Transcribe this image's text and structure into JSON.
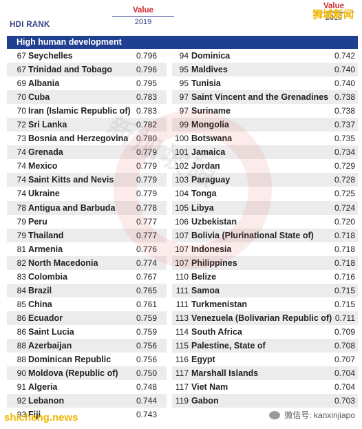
{
  "header": {
    "hdi_rank_label": "HDI RANK",
    "value_label": "Value",
    "year_label": "2019",
    "value_label_right": "Value",
    "year_label_right": "2019"
  },
  "section": {
    "title": "High human development"
  },
  "watermarks": {
    "top_right": "狮城新闻",
    "center": "新加坡眼",
    "bottom_left": "shicheng.news",
    "bottom_right": "微信号: kanxinjiapo"
  },
  "left_rows": [
    {
      "rank": "67",
      "country": "Seychelles",
      "value": "0.796"
    },
    {
      "rank": "67",
      "country": "Trinidad and Tobago",
      "value": "0.796"
    },
    {
      "rank": "69",
      "country": "Albania",
      "value": "0.795"
    },
    {
      "rank": "70",
      "country": "Cuba",
      "value": "0.783"
    },
    {
      "rank": "70",
      "country": "Iran (Islamic Republic of)",
      "value": "0.783"
    },
    {
      "rank": "72",
      "country": "Sri Lanka",
      "value": "0.782"
    },
    {
      "rank": "73",
      "country": "Bosnia and Herzegovina",
      "value": "0.780"
    },
    {
      "rank": "74",
      "country": "Grenada",
      "value": "0.779"
    },
    {
      "rank": "74",
      "country": "Mexico",
      "value": "0.779"
    },
    {
      "rank": "74",
      "country": "Saint Kitts and Nevis",
      "value": "0.779"
    },
    {
      "rank": "74",
      "country": "Ukraine",
      "value": "0.779"
    },
    {
      "rank": "78",
      "country": "Antigua and Barbuda",
      "value": "0.778"
    },
    {
      "rank": "79",
      "country": "Peru",
      "value": "0.777"
    },
    {
      "rank": "79",
      "country": "Thailand",
      "value": "0.777"
    },
    {
      "rank": "81",
      "country": "Armenia",
      "value": "0.776"
    },
    {
      "rank": "82",
      "country": "North Macedonia",
      "value": "0.774"
    },
    {
      "rank": "83",
      "country": "Colombia",
      "value": "0.767"
    },
    {
      "rank": "84",
      "country": "Brazil",
      "value": "0.765"
    },
    {
      "rank": "85",
      "country": "China",
      "value": "0.761"
    },
    {
      "rank": "86",
      "country": "Ecuador",
      "value": "0.759"
    },
    {
      "rank": "86",
      "country": "Saint Lucia",
      "value": "0.759"
    },
    {
      "rank": "88",
      "country": "Azerbaijan",
      "value": "0.756"
    },
    {
      "rank": "88",
      "country": "Dominican Republic",
      "value": "0.756"
    },
    {
      "rank": "90",
      "country": "Moldova (Republic of)",
      "value": "0.750"
    },
    {
      "rank": "91",
      "country": "Algeria",
      "value": "0.748"
    },
    {
      "rank": "92",
      "country": "Lebanon",
      "value": "0.744"
    },
    {
      "rank": "93",
      "country": "Fiji",
      "value": "0.743"
    }
  ],
  "right_rows": [
    {
      "rank": "94",
      "country": "Dominica",
      "value": "0.742"
    },
    {
      "rank": "95",
      "country": "Maldives",
      "value": "0.740"
    },
    {
      "rank": "95",
      "country": "Tunisia",
      "value": "0.740"
    },
    {
      "rank": "97",
      "country": "Saint Vincent and the Grenadines",
      "value": "0.738"
    },
    {
      "rank": "97",
      "country": "Suriname",
      "value": "0.738"
    },
    {
      "rank": "99",
      "country": "Mongolia",
      "value": "0.737"
    },
    {
      "rank": "100",
      "country": "Botswana",
      "value": "0.735"
    },
    {
      "rank": "101",
      "country": "Jamaica",
      "value": "0.734"
    },
    {
      "rank": "102",
      "country": "Jordan",
      "value": "0.729"
    },
    {
      "rank": "103",
      "country": "Paraguay",
      "value": "0.728"
    },
    {
      "rank": "104",
      "country": "Tonga",
      "value": "0.725"
    },
    {
      "rank": "105",
      "country": "Libya",
      "value": "0.724"
    },
    {
      "rank": "106",
      "country": "Uzbekistan",
      "value": "0.720"
    },
    {
      "rank": "107",
      "country": "Bolivia (Plurinational State of)",
      "value": "0.718"
    },
    {
      "rank": "107",
      "country": "Indonesia",
      "value": "0.718"
    },
    {
      "rank": "107",
      "country": "Philippines",
      "value": "0.718"
    },
    {
      "rank": "110",
      "country": "Belize",
      "value": "0.716"
    },
    {
      "rank": "111",
      "country": "Samoa",
      "value": "0.715"
    },
    {
      "rank": "111",
      "country": "Turkmenistan",
      "value": "0.715"
    },
    {
      "rank": "113",
      "country": "Venezuela (Bolivarian Republic of)",
      "value": "0.711"
    },
    {
      "rank": "114",
      "country": "South Africa",
      "value": "0.709"
    },
    {
      "rank": "115",
      "country": "Palestine, State of",
      "value": "0.708"
    },
    {
      "rank": "116",
      "country": "Egypt",
      "value": "0.707"
    },
    {
      "rank": "117",
      "country": "Marshall Islands",
      "value": "0.704"
    },
    {
      "rank": "117",
      "country": "Viet Nam",
      "value": "0.704"
    },
    {
      "rank": "119",
      "country": "Gabon",
      "value": "0.703"
    }
  ]
}
